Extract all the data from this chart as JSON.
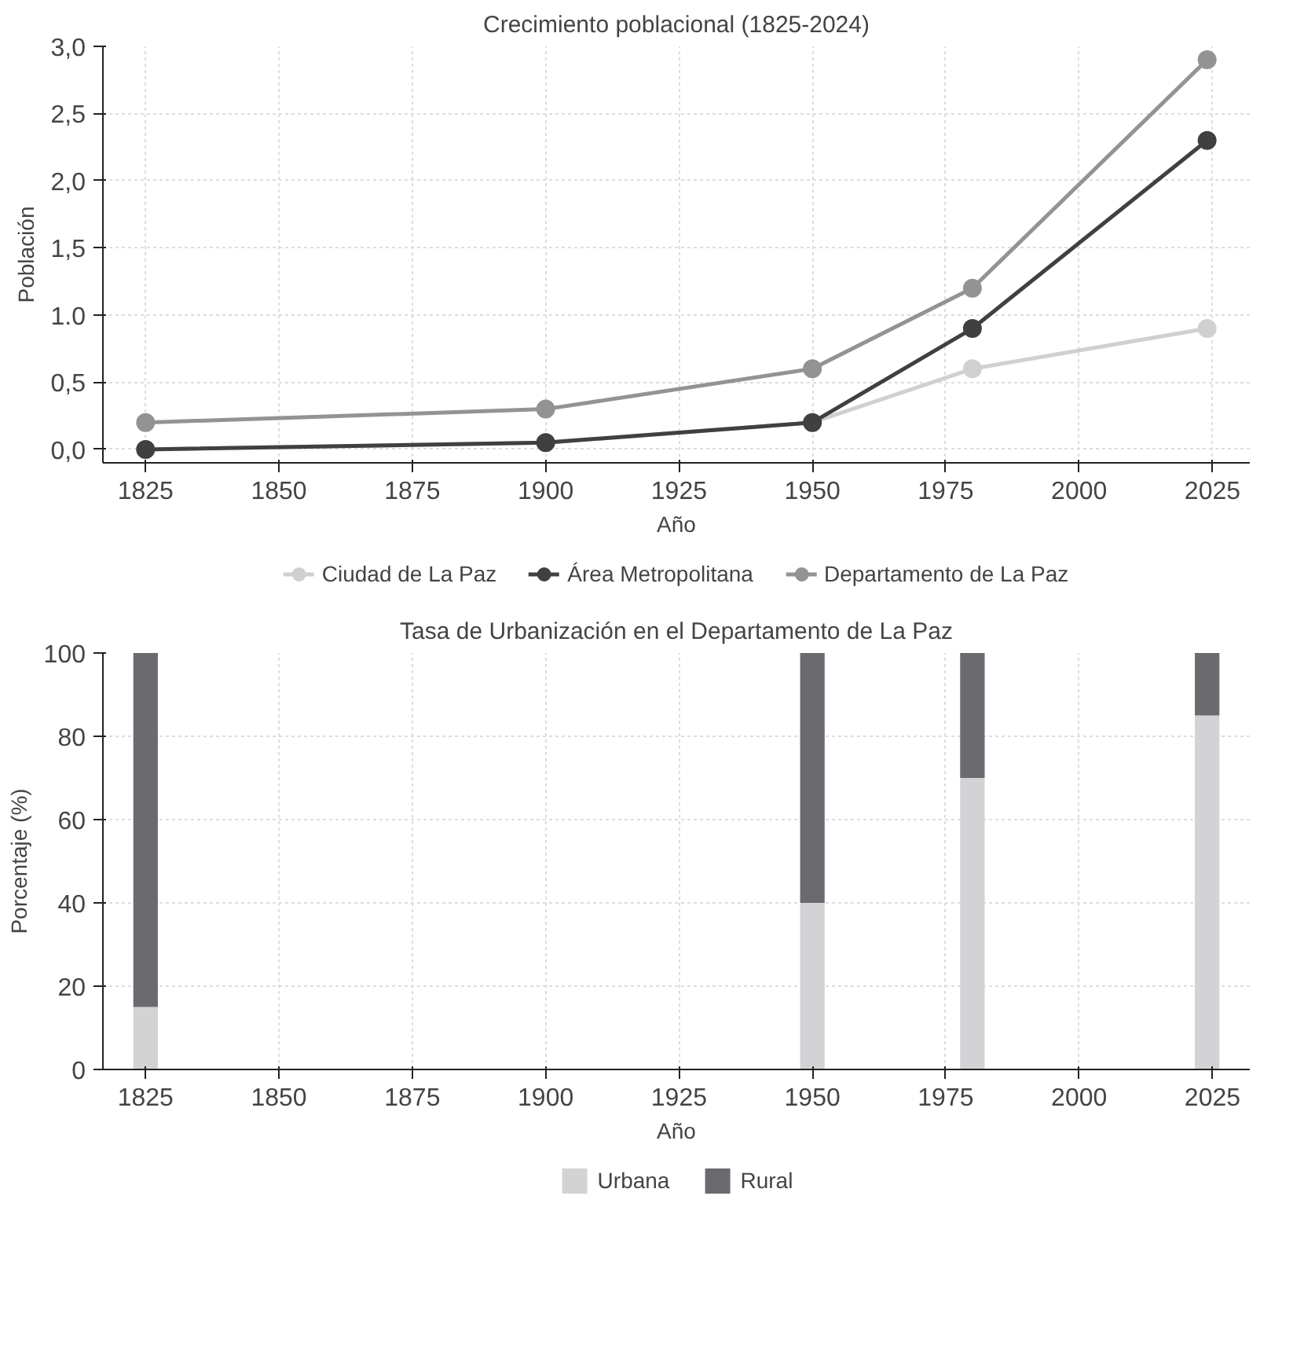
{
  "chart_data": [
    {
      "type": "line",
      "title": "Crecimiento poblacional (1825-2024)",
      "xlabel": "Año",
      "ylabel": "Población",
      "x": [
        1825,
        1900,
        1950,
        1980,
        2024
      ],
      "series": [
        {
          "name": "Ciudad de La Paz",
          "color": "#d0d0d0",
          "values": [
            0.0,
            0.05,
            0.2,
            0.6,
            0.9
          ]
        },
        {
          "name": "Área Metropolitana",
          "color": "#404040",
          "values": [
            0.0,
            0.05,
            0.2,
            0.9,
            2.3
          ]
        },
        {
          "name": "Departamento de La Paz",
          "color": "#939393",
          "values": [
            0.2,
            0.3,
            0.6,
            1.2,
            2.9
          ]
        }
      ],
      "xlim": [
        1817,
        2032
      ],
      "xticks": [
        1825,
        1850,
        1875,
        1900,
        1925,
        1950,
        1975,
        2000,
        2025
      ],
      "ylim": [
        -0.1,
        3.0
      ],
      "yticks": [
        {
          "value": 0,
          "label": "0,0"
        },
        {
          "value": 0.5,
          "label": "0,5"
        },
        {
          "value": 1,
          "label": "1.0"
        },
        {
          "value": 1.5,
          "label": "1,5"
        },
        {
          "value": 2,
          "label": "2,0"
        },
        {
          "value": 2.5,
          "label": "2,5"
        },
        {
          "value": 3,
          "label": "3,0"
        }
      ],
      "grid": true,
      "legend": "bottom",
      "marker": "circle",
      "line_style": "solid"
    },
    {
      "type": "bar",
      "stacked": true,
      "title": "Tasa de Urbanización en el Departamento de La Paz",
      "xlabel": "Año",
      "ylabel": "Porcentaje (%)",
      "x": [
        1825,
        1950,
        1980,
        2024
      ],
      "series": [
        {
          "name": "Urbana",
          "color": "#d3d3d5",
          "values": [
            15,
            40,
            70,
            85
          ]
        },
        {
          "name": "Rural",
          "color": "#6b6b6f",
          "values": [
            85,
            60,
            30,
            15
          ]
        }
      ],
      "xlim": [
        1817,
        2032
      ],
      "xticks": [
        1825,
        1850,
        1875,
        1900,
        1925,
        1950,
        1975,
        2000,
        2025
      ],
      "ylim": [
        0,
        100
      ],
      "yticks": [
        0,
        20,
        40,
        60,
        80,
        100
      ],
      "grid": true,
      "legend": "bottom"
    }
  ]
}
